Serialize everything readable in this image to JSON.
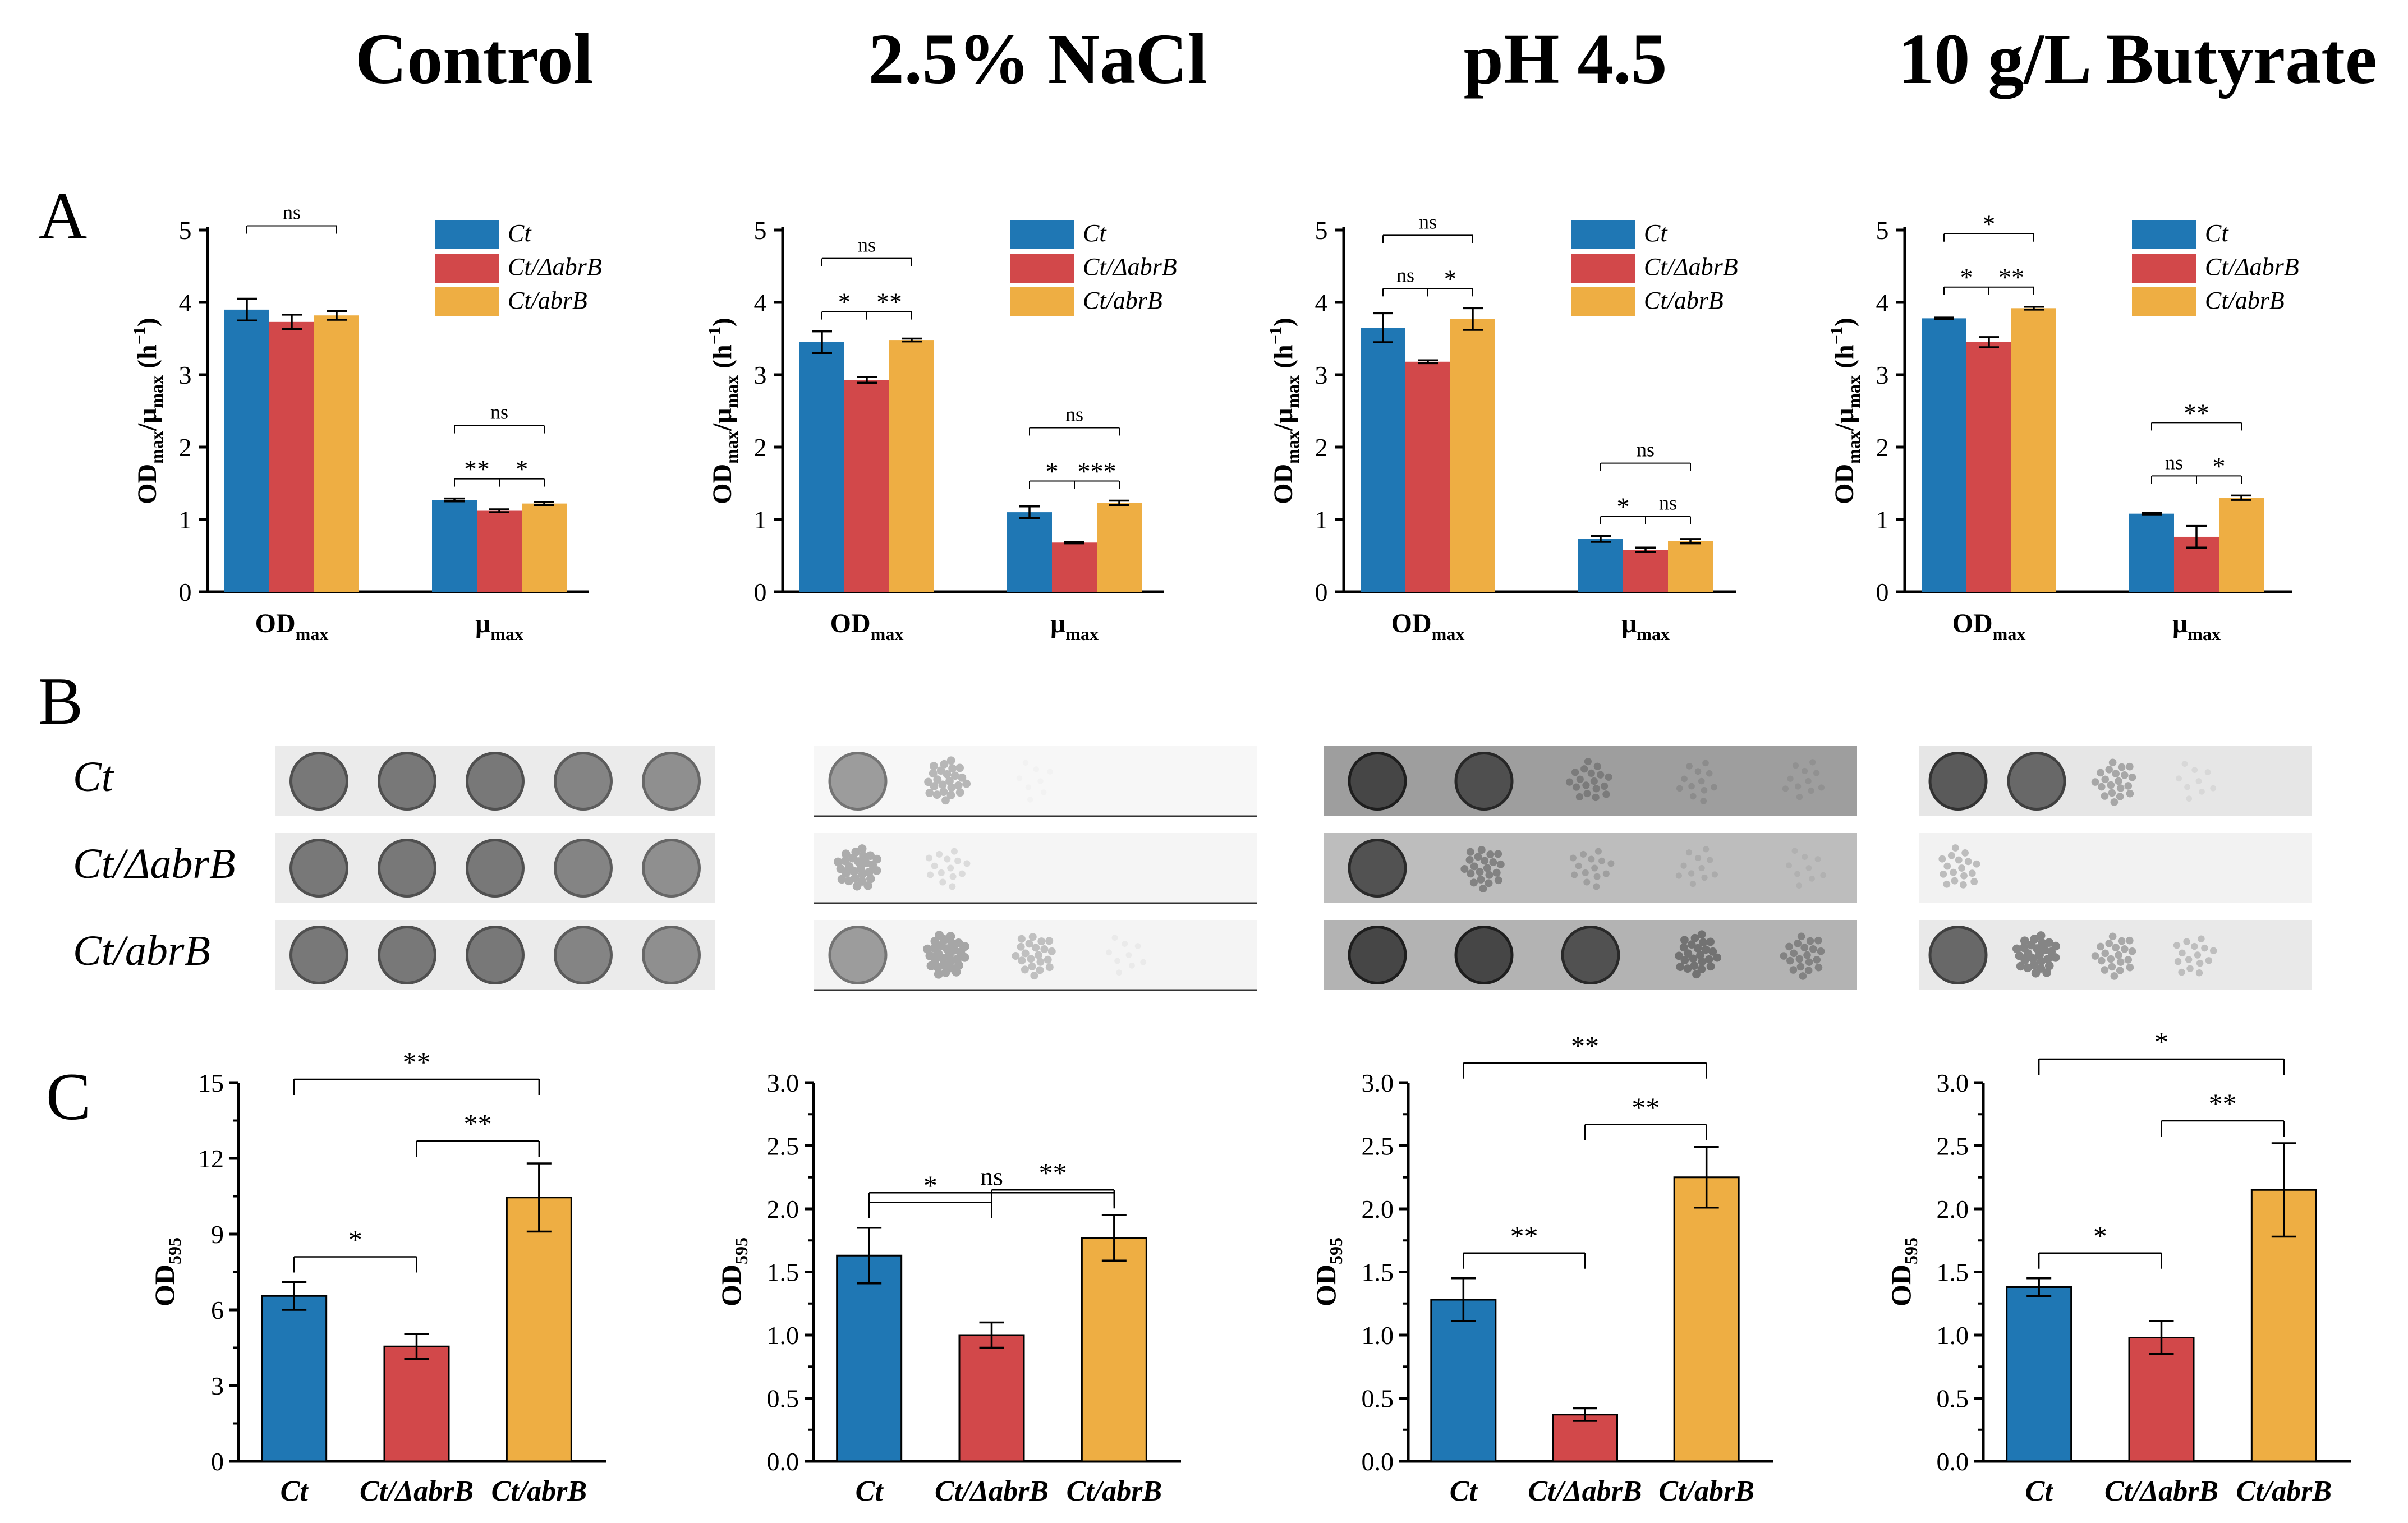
{
  "conditions": [
    "Control",
    "2.5% NaCl",
    "pH 4.5",
    "10 g/L Butyrate"
  ],
  "panel_labels": [
    "A",
    "B",
    "C"
  ],
  "strains": [
    "Ct",
    "Ct/ΔabrB",
    "Ct/abrB"
  ],
  "colors": {
    "Ct": "#1f77b4",
    "Ct/ΔabrB": "#d2484a",
    "Ct/abrB": "#eeae43"
  },
  "chart_data": [
    {
      "panel": "A",
      "condition": "Control",
      "type": "bar",
      "categories": [
        "OD",
        "μ"
      ],
      "category_subscript": "max",
      "series": [
        {
          "name": "Ct",
          "values": [
            3.9,
            1.27
          ],
          "errors": [
            0.15,
            0.02
          ]
        },
        {
          "name": "Ct/ΔabrB",
          "values": [
            3.73,
            1.12
          ],
          "errors": [
            0.1,
            0.02
          ]
        },
        {
          "name": "Ct/abrB",
          "values": [
            3.82,
            1.22
          ],
          "errors": [
            0.06,
            0.02
          ]
        }
      ],
      "ylabel": "ODmax/μmax (h⁻¹)",
      "ylim": [
        0,
        5
      ],
      "yticks": [
        "0",
        "1",
        "2",
        "3",
        "4",
        "5"
      ],
      "significance": [
        {
          "group": 0,
          "from": 0,
          "to": 2,
          "label": "ns",
          "level": 1
        },
        {
          "group": 1,
          "from": 0,
          "to": 1,
          "label": "**",
          "level": 0
        },
        {
          "group": 1,
          "from": 1,
          "to": 2,
          "label": "*",
          "level": 0
        },
        {
          "group": 1,
          "from": 0,
          "to": 2,
          "label": "ns",
          "level": 1
        }
      ]
    },
    {
      "panel": "A",
      "condition": "2.5% NaCl",
      "type": "bar",
      "categories": [
        "OD",
        "μ"
      ],
      "category_subscript": "max",
      "series": [
        {
          "name": "Ct",
          "values": [
            3.45,
            1.1
          ],
          "errors": [
            0.15,
            0.08
          ]
        },
        {
          "name": "Ct/ΔabrB",
          "values": [
            2.93,
            0.68
          ],
          "errors": [
            0.04,
            0.01
          ]
        },
        {
          "name": "Ct/abrB",
          "values": [
            3.48,
            1.23
          ],
          "errors": [
            0.02,
            0.03
          ]
        }
      ],
      "ylabel": "ODmax/μmax (h⁻¹)",
      "ylim": [
        0,
        5
      ],
      "yticks": [
        "0",
        "1",
        "2",
        "3",
        "4",
        "5"
      ],
      "significance": [
        {
          "group": 0,
          "from": 0,
          "to": 1,
          "label": "*",
          "level": 0
        },
        {
          "group": 0,
          "from": 1,
          "to": 2,
          "label": "**",
          "level": 0
        },
        {
          "group": 0,
          "from": 0,
          "to": 2,
          "label": "ns",
          "level": 1
        },
        {
          "group": 1,
          "from": 0,
          "to": 1,
          "label": "*",
          "level": 0
        },
        {
          "group": 1,
          "from": 1,
          "to": 2,
          "label": "***",
          "level": 0
        },
        {
          "group": 1,
          "from": 0,
          "to": 2,
          "label": "ns",
          "level": 1
        }
      ]
    },
    {
      "panel": "A",
      "condition": "pH 4.5",
      "type": "bar",
      "categories": [
        "OD",
        "μ"
      ],
      "category_subscript": "max",
      "series": [
        {
          "name": "Ct",
          "values": [
            3.65,
            0.73
          ],
          "errors": [
            0.2,
            0.04
          ]
        },
        {
          "name": "Ct/ΔabrB",
          "values": [
            3.18,
            0.58
          ],
          "errors": [
            0.02,
            0.03
          ]
        },
        {
          "name": "Ct/abrB",
          "values": [
            3.77,
            0.7
          ],
          "errors": [
            0.15,
            0.03
          ]
        }
      ],
      "ylabel": "ODmax/μmax (h⁻¹)",
      "ylim": [
        0,
        5
      ],
      "yticks": [
        "0",
        "1",
        "2",
        "3",
        "4",
        "5"
      ],
      "significance": [
        {
          "group": 0,
          "from": 0,
          "to": 1,
          "label": "ns",
          "level": 0
        },
        {
          "group": 0,
          "from": 1,
          "to": 2,
          "label": "*",
          "level": 0
        },
        {
          "group": 0,
          "from": 0,
          "to": 2,
          "label": "ns",
          "level": 1
        },
        {
          "group": 1,
          "from": 0,
          "to": 1,
          "label": "*",
          "level": 0
        },
        {
          "group": 1,
          "from": 1,
          "to": 2,
          "label": "ns",
          "level": 0
        },
        {
          "group": 1,
          "from": 0,
          "to": 2,
          "label": "ns",
          "level": 1
        }
      ]
    },
    {
      "panel": "A",
      "condition": "10 g/L Butyrate",
      "type": "bar",
      "categories": [
        "OD",
        "μ"
      ],
      "category_subscript": "max",
      "series": [
        {
          "name": "Ct",
          "values": [
            3.78,
            1.08
          ],
          "errors": [
            0.01,
            0.01
          ]
        },
        {
          "name": "Ct/ΔabrB",
          "values": [
            3.45,
            0.76
          ],
          "errors": [
            0.07,
            0.15
          ]
        },
        {
          "name": "Ct/abrB",
          "values": [
            3.92,
            1.3
          ],
          "errors": [
            0.02,
            0.03
          ]
        }
      ],
      "ylabel": "ODmax/μmax (h⁻¹)",
      "ylim": [
        0,
        5
      ],
      "yticks": [
        "0",
        "1",
        "2",
        "3",
        "4",
        "5"
      ],
      "significance": [
        {
          "group": 0,
          "from": 0,
          "to": 1,
          "label": "*",
          "level": 0
        },
        {
          "group": 0,
          "from": 1,
          "to": 2,
          "label": "**",
          "level": 0
        },
        {
          "group": 0,
          "from": 0,
          "to": 2,
          "label": "*",
          "level": 1
        },
        {
          "group": 1,
          "from": 0,
          "to": 1,
          "label": "ns",
          "level": 0
        },
        {
          "group": 1,
          "from": 1,
          "to": 2,
          "label": "*",
          "level": 0
        },
        {
          "group": 1,
          "from": 0,
          "to": 2,
          "label": "**",
          "level": 1
        }
      ]
    },
    {
      "panel": "C",
      "condition": "Control",
      "type": "bar",
      "categories": [
        "Ct",
        "Ct/ΔabrB",
        "Ct/abrB"
      ],
      "values": [
        6.55,
        4.55,
        10.45
      ],
      "errors": [
        0.55,
        0.5,
        1.35
      ],
      "ylabel": "OD595",
      "ylim": [
        0,
        15
      ],
      "yticks": [
        "0",
        "3",
        "6",
        "9",
        "12",
        "15"
      ],
      "significance": [
        {
          "from": 0,
          "to": 1,
          "label": "*",
          "level": 0
        },
        {
          "from": 1,
          "to": 2,
          "label": "**",
          "level": 1
        },
        {
          "from": 0,
          "to": 2,
          "label": "**",
          "level": 2
        }
      ]
    },
    {
      "panel": "C",
      "condition": "2.5% NaCl",
      "type": "bar",
      "categories": [
        "Ct",
        "Ct/ΔabrB",
        "Ct/abrB"
      ],
      "values": [
        1.63,
        1.0,
        1.77
      ],
      "errors": [
        0.22,
        0.1,
        0.18
      ],
      "ylabel": "OD595",
      "ylim": [
        0,
        3
      ],
      "yticks": [
        "0.0",
        "0.5",
        "1.0",
        "1.5",
        "2.0",
        "2.5",
        "3.0"
      ],
      "significance": [
        {
          "from": 0,
          "to": 1,
          "label": "*",
          "level": 0
        },
        {
          "from": 1,
          "to": 2,
          "label": "**",
          "level": 0
        },
        {
          "from": 0,
          "to": 2,
          "label": "ns",
          "level": 1
        }
      ]
    },
    {
      "panel": "C",
      "condition": "pH 4.5",
      "type": "bar",
      "categories": [
        "Ct",
        "Ct/ΔabrB",
        "Ct/abrB"
      ],
      "values": [
        1.28,
        0.37,
        2.25
      ],
      "errors": [
        0.17,
        0.05,
        0.24
      ],
      "ylabel": "OD595",
      "ylim": [
        0,
        3
      ],
      "yticks": [
        "0.0",
        "0.5",
        "1.0",
        "1.5",
        "2.0",
        "2.5",
        "3.0"
      ],
      "significance": [
        {
          "from": 0,
          "to": 1,
          "label": "**",
          "level": 0
        },
        {
          "from": 1,
          "to": 2,
          "label": "**",
          "level": 1
        },
        {
          "from": 0,
          "to": 2,
          "label": "**",
          "level": 2
        }
      ]
    },
    {
      "panel": "C",
      "condition": "10 g/L Butyrate",
      "type": "bar",
      "categories": [
        "Ct",
        "Ct/ΔabrB",
        "Ct/abrB"
      ],
      "values": [
        1.38,
        0.98,
        2.15
      ],
      "errors": [
        0.07,
        0.13,
        0.37
      ],
      "ylabel": "OD595",
      "ylim": [
        0,
        3
      ],
      "yticks": [
        "0.0",
        "0.5",
        "1.0",
        "1.5",
        "2.0",
        "2.5",
        "3.0"
      ],
      "significance": [
        {
          "from": 0,
          "to": 1,
          "label": "*",
          "level": 0
        },
        {
          "from": 1,
          "to": 2,
          "label": "**",
          "level": 1
        },
        {
          "from": 0,
          "to": 2,
          "label": "*",
          "level": 2
        }
      ]
    }
  ],
  "spot_assay": {
    "panel": "B",
    "rows": [
      "Ct",
      "Ct/ΔabrB",
      "Ct/abrB"
    ],
    "description_levels": "visible colony growth per dilution (1 = dense spot, 0 = none)",
    "growth": [
      [
        [
          1,
          1,
          1,
          0.9,
          0.8
        ],
        [
          1,
          1,
          1,
          0.9,
          0.8
        ],
        [
          1,
          1,
          1,
          0.9,
          0.8
        ]
      ],
      [
        [
          0.85,
          0.6,
          0.05,
          0,
          0
        ],
        [
          0.7,
          0.25,
          0,
          0,
          0
        ],
        [
          0.85,
          0.75,
          0.5,
          0.1,
          0
        ]
      ],
      [
        [
          1,
          0.9,
          0.4,
          0.2,
          0.15
        ],
        [
          0.9,
          0.5,
          0.25,
          0.15,
          0.1
        ],
        [
          1,
          1,
          0.9,
          0.6,
          0.45
        ]
      ],
      [
        [
          1,
          0.9,
          0.45,
          0.1,
          0
        ],
        [
          0.35,
          0,
          0,
          0,
          0
        ],
        [
          0.9,
          0.7,
          0.45,
          0.3,
          0
        ]
      ]
    ]
  }
}
